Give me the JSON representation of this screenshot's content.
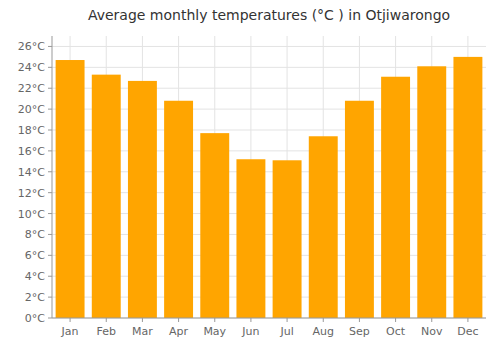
{
  "chart_data": {
    "type": "bar",
    "title": "Average monthly temperatures (°C ) in Otjiwarongo",
    "categories": [
      "Jan",
      "Feb",
      "Mar",
      "Apr",
      "May",
      "Jun",
      "Jul",
      "Aug",
      "Sep",
      "Oct",
      "Nov",
      "Dec"
    ],
    "values": [
      24.7,
      23.3,
      22.7,
      20.8,
      17.7,
      15.2,
      15.1,
      17.4,
      20.8,
      23.1,
      24.1,
      25.0
    ],
    "color": "#FFA500",
    "ylim": [
      0,
      27
    ],
    "yticks": [
      {
        "value": 0,
        "label": "0°C"
      },
      {
        "value": 2,
        "label": "2°C"
      },
      {
        "value": 4,
        "label": "4°C"
      },
      {
        "value": 6,
        "label": "6°C"
      },
      {
        "value": 8,
        "label": "8°C"
      },
      {
        "value": 10,
        "label": "10°C"
      },
      {
        "value": 12,
        "label": "12°C"
      },
      {
        "value": 14,
        "label": "14°C"
      },
      {
        "value": 16,
        "label": "16°C"
      },
      {
        "value": 18,
        "label": "18°C"
      },
      {
        "value": 20,
        "label": "20°C"
      },
      {
        "value": 22,
        "label": "22°C"
      },
      {
        "value": 24,
        "label": "24°C"
      },
      {
        "value": 26,
        "label": "26°C"
      }
    ],
    "grid": true
  }
}
